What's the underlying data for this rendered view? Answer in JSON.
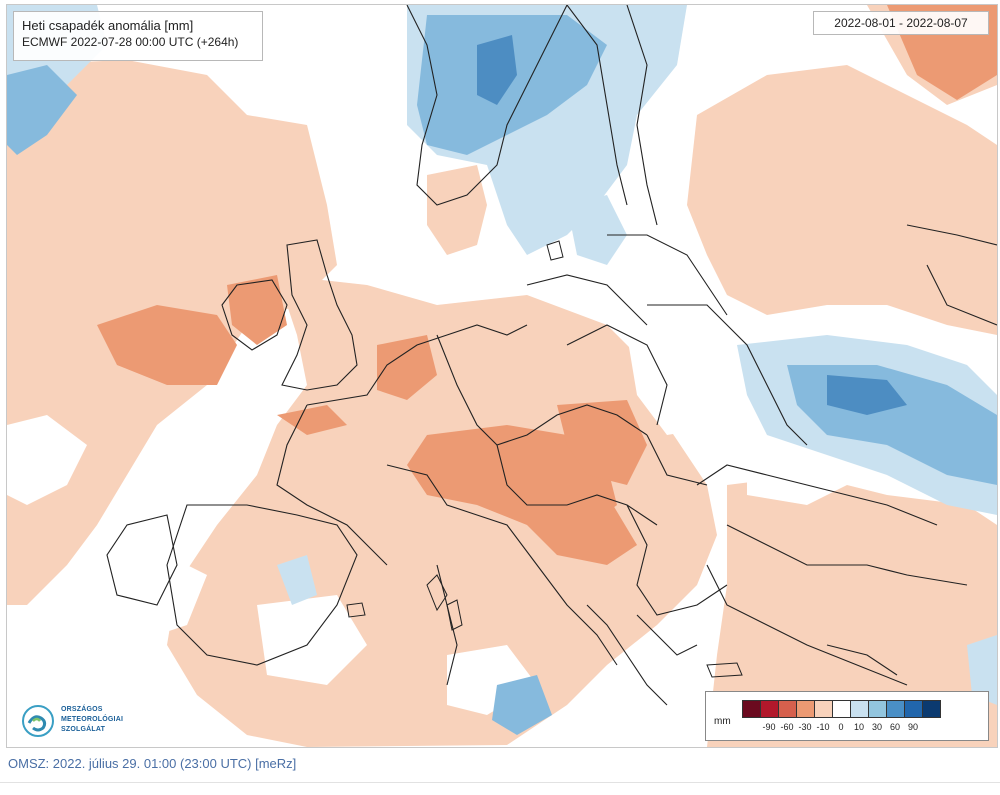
{
  "map": {
    "title": "Heti csapadék anomália [mm]",
    "subtitle": "ECMWF 2022-07-28 00:00 UTC (+264h)",
    "period": "2022-08-01 - 2022-08-07"
  },
  "colors": {
    "background": "#ffffff",
    "light_orange": "#f8d2bb",
    "medium_orange": "#ec9a73",
    "light_blue": "#c9e1f0",
    "medium_blue": "#86badd",
    "dark_blue": "#4d8dc2",
    "border_line": "#222222"
  },
  "legend": {
    "unit": "mm",
    "ticks": [
      "-90",
      "-60",
      "-30",
      "-10",
      "0",
      "10",
      "30",
      "60",
      "90"
    ],
    "swatches": [
      "#6b0a1f",
      "#b2182b",
      "#d6604d",
      "#ec9a73",
      "#f8d2bb",
      "#ffffff",
      "#c9e1f0",
      "#92c5de",
      "#4a8fc6",
      "#2166ac",
      "#0b3a70"
    ]
  },
  "logo": {
    "line1": "ORSZÁGOS",
    "line2": "METEOROLÓGIAI",
    "line3": "SZOLGÁLAT"
  },
  "footer": {
    "text": "OMSZ: 2022. július 29. 01:00 (23:00  UTC)  [meRz]"
  }
}
